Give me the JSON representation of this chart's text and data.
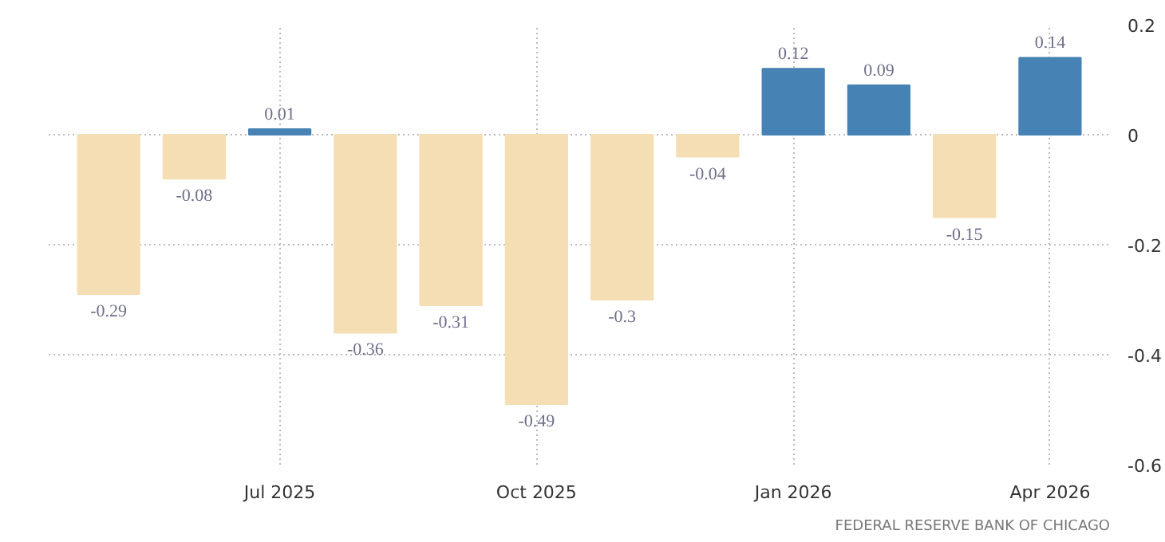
{
  "chart_data": {
    "type": "bar",
    "categories": [
      null,
      null,
      "Jul 2025",
      null,
      null,
      "Oct 2025",
      null,
      null,
      "Jan 2026",
      null,
      null,
      "Apr 2026"
    ],
    "values": [
      -0.29,
      -0.08,
      0.01,
      -0.36,
      -0.31,
      -0.49,
      -0.3,
      -0.04,
      0.12,
      0.09,
      -0.15,
      0.14
    ],
    "colors": [
      "#f5deb3",
      "#f5deb3",
      "#4682b4",
      "#f5deb3",
      "#f5deb3",
      "#f5deb3",
      "#f5deb3",
      "#f5deb3",
      "#4682b4",
      "#4682b4",
      "#f5deb3",
      "#4682b4"
    ],
    "ylim": [
      -0.6,
      0.2
    ],
    "yticks": [
      0.2,
      0,
      -0.2,
      -0.4,
      -0.6
    ],
    "grid": true,
    "data_labels": true,
    "annotations": [
      "FEDERAL RESERVE BANK OF CHICAGO"
    ]
  }
}
